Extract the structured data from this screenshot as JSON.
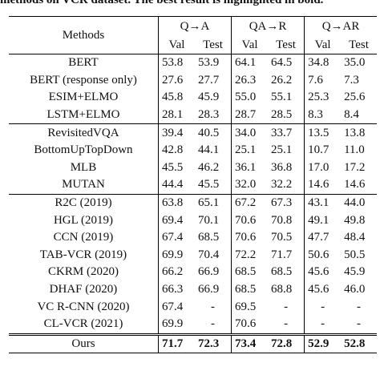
{
  "caption": "methods on VCR dataset. The best result is highlighted in bold.",
  "header": {
    "methods_label": "Methods",
    "tasks": [
      "Q→A",
      "QA→R",
      "Q→AR"
    ],
    "subcols": [
      "Val",
      "Test",
      "Val",
      "Test",
      "Val",
      "Test"
    ]
  },
  "groups": [
    {
      "rows": [
        {
          "method": "BERT",
          "values": [
            "53.8",
            "53.9",
            "64.1",
            "64.5",
            "34.8",
            "35.0"
          ]
        },
        {
          "method": "BERT (response only)",
          "values": [
            "27.6",
            "27.7",
            "26.3",
            "26.2",
            "7.6",
            "7.3"
          ]
        },
        {
          "method": "ESIM+ELMO",
          "values": [
            "45.8",
            "45.9",
            "55.0",
            "55.1",
            "25.3",
            "25.6"
          ]
        },
        {
          "method": "LSTM+ELMO",
          "values": [
            "28.1",
            "28.3",
            "28.7",
            "28.5",
            "8.3",
            "8.4"
          ]
        }
      ]
    },
    {
      "rows": [
        {
          "method": "RevisitedVQA",
          "values": [
            "39.4",
            "40.5",
            "34.0",
            "33.7",
            "13.5",
            "13.8"
          ]
        },
        {
          "method": "BottomUpTopDown",
          "values": [
            "42.8",
            "44.1",
            "25.1",
            "25.1",
            "10.7",
            "11.0"
          ]
        },
        {
          "method": "MLB",
          "values": [
            "45.5",
            "46.2",
            "36.1",
            "36.8",
            "17.0",
            "17.2"
          ]
        },
        {
          "method": "MUTAN",
          "values": [
            "44.4",
            "45.5",
            "32.0",
            "32.2",
            "14.6",
            "14.6"
          ]
        }
      ]
    },
    {
      "rows": [
        {
          "method": "R2C (2019)",
          "values": [
            "63.8",
            "65.1",
            "67.2",
            "67.3",
            "43.1",
            "44.0"
          ]
        },
        {
          "method": "HGL (2019)",
          "values": [
            "69.4",
            "70.1",
            "70.6",
            "70.8",
            "49.1",
            "49.8"
          ]
        },
        {
          "method": "CCN (2019)",
          "values": [
            "67.4",
            "68.5",
            "70.6",
            "70.5",
            "47.7",
            "48.4"
          ]
        },
        {
          "method": "TAB-VCR (2019)",
          "values": [
            "69.9",
            "70.4",
            "72.2",
            "71.7",
            "50.6",
            "50.5"
          ]
        },
        {
          "method": "CKRM (2020)",
          "values": [
            "66.2",
            "66.9",
            "68.5",
            "68.5",
            "45.6",
            "45.9"
          ]
        },
        {
          "method": "DHAF (2020)",
          "values": [
            "66.3",
            "66.9",
            "68.5",
            "68.8",
            "45.6",
            "46.0"
          ]
        },
        {
          "method": "VC R-CNN (2020)",
          "values": [
            "67.4",
            "-",
            "69.5",
            "-",
            "-",
            "-"
          ]
        },
        {
          "method": "CL-VCR (2021)",
          "values": [
            "69.9",
            "-",
            "70.6",
            "-",
            "-",
            "-"
          ]
        }
      ]
    },
    {
      "rows": [
        {
          "method": "Ours",
          "values": [
            "71.7",
            "72.3",
            "73.4",
            "72.8",
            "52.9",
            "52.8"
          ],
          "bold": true
        }
      ]
    }
  ]
}
